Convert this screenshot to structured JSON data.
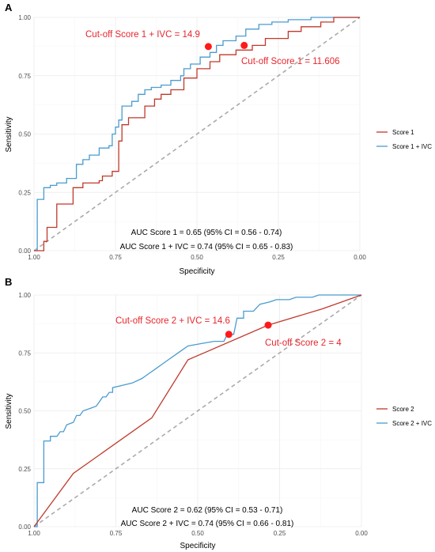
{
  "colors": {
    "red": "#c0392b",
    "blue": "#4a9ccf",
    "cutoff": "#ff1a1a",
    "cutoff_text": "#e8252c",
    "diagonal": "#aaaaaa"
  },
  "chart_data": [
    {
      "type": "line",
      "panel_label": "A",
      "title": "",
      "xlabel": "Specificity",
      "ylabel": "Sensitivity",
      "xlim": [
        1.0,
        0.0
      ],
      "ylim": [
        0.0,
        1.0
      ],
      "x_reversed": true,
      "xticks": [
        "1.00",
        "0.75",
        "0.50",
        "0.25",
        "0.00"
      ],
      "yticks": [
        "0.00",
        "0.25",
        "0.50",
        "0.75",
        "1.00"
      ],
      "grid": true,
      "legend_position": "right",
      "series": [
        {
          "name": "Score 1",
          "color_key": "red",
          "points": [
            [
              1.0,
              0.0
            ],
            [
              0.97,
              0.0
            ],
            [
              0.97,
              0.04
            ],
            [
              0.96,
              0.04
            ],
            [
              0.96,
              0.1
            ],
            [
              0.93,
              0.1
            ],
            [
              0.93,
              0.2
            ],
            [
              0.88,
              0.2
            ],
            [
              0.88,
              0.27
            ],
            [
              0.85,
              0.27
            ],
            [
              0.85,
              0.29
            ],
            [
              0.8,
              0.29
            ],
            [
              0.8,
              0.3
            ],
            [
              0.79,
              0.3
            ],
            [
              0.79,
              0.32
            ],
            [
              0.76,
              0.32
            ],
            [
              0.76,
              0.34
            ],
            [
              0.74,
              0.34
            ],
            [
              0.74,
              0.47
            ],
            [
              0.73,
              0.47
            ],
            [
              0.73,
              0.54
            ],
            [
              0.71,
              0.54
            ],
            [
              0.71,
              0.57
            ],
            [
              0.66,
              0.57
            ],
            [
              0.66,
              0.62
            ],
            [
              0.63,
              0.62
            ],
            [
              0.63,
              0.65
            ],
            [
              0.61,
              0.65
            ],
            [
              0.61,
              0.67
            ],
            [
              0.58,
              0.67
            ],
            [
              0.58,
              0.69
            ],
            [
              0.54,
              0.69
            ],
            [
              0.54,
              0.74
            ],
            [
              0.5,
              0.74
            ],
            [
              0.5,
              0.78
            ],
            [
              0.46,
              0.78
            ],
            [
              0.46,
              0.81
            ],
            [
              0.43,
              0.81
            ],
            [
              0.43,
              0.84
            ],
            [
              0.38,
              0.84
            ],
            [
              0.38,
              0.86
            ],
            [
              0.33,
              0.86
            ],
            [
              0.33,
              0.88
            ],
            [
              0.29,
              0.88
            ],
            [
              0.29,
              0.91
            ],
            [
              0.22,
              0.91
            ],
            [
              0.22,
              0.94
            ],
            [
              0.18,
              0.94
            ],
            [
              0.18,
              0.96
            ],
            [
              0.12,
              0.96
            ],
            [
              0.12,
              0.98
            ],
            [
              0.08,
              0.98
            ],
            [
              0.08,
              1.0
            ],
            [
              0.0,
              1.0
            ]
          ]
        },
        {
          "name": "Score 1 + IVC",
          "color_key": "blue",
          "points": [
            [
              1.0,
              0.0
            ],
            [
              0.99,
              0.0
            ],
            [
              0.99,
              0.22
            ],
            [
              0.97,
              0.22
            ],
            [
              0.97,
              0.27
            ],
            [
              0.95,
              0.27
            ],
            [
              0.95,
              0.28
            ],
            [
              0.93,
              0.28
            ],
            [
              0.93,
              0.29
            ],
            [
              0.9,
              0.29
            ],
            [
              0.9,
              0.31
            ],
            [
              0.87,
              0.31
            ],
            [
              0.87,
              0.37
            ],
            [
              0.85,
              0.37
            ],
            [
              0.85,
              0.39
            ],
            [
              0.83,
              0.39
            ],
            [
              0.83,
              0.41
            ],
            [
              0.8,
              0.41
            ],
            [
              0.8,
              0.44
            ],
            [
              0.77,
              0.44
            ],
            [
              0.77,
              0.45
            ],
            [
              0.76,
              0.45
            ],
            [
              0.76,
              0.5
            ],
            [
              0.75,
              0.5
            ],
            [
              0.75,
              0.53
            ],
            [
              0.74,
              0.53
            ],
            [
              0.74,
              0.56
            ],
            [
              0.73,
              0.56
            ],
            [
              0.73,
              0.62
            ],
            [
              0.7,
              0.62
            ],
            [
              0.7,
              0.64
            ],
            [
              0.68,
              0.64
            ],
            [
              0.68,
              0.67
            ],
            [
              0.66,
              0.67
            ],
            [
              0.66,
              0.69
            ],
            [
              0.64,
              0.69
            ],
            [
              0.64,
              0.7
            ],
            [
              0.61,
              0.7
            ],
            [
              0.61,
              0.71
            ],
            [
              0.58,
              0.71
            ],
            [
              0.58,
              0.73
            ],
            [
              0.55,
              0.73
            ],
            [
              0.55,
              0.75
            ],
            [
              0.54,
              0.75
            ],
            [
              0.54,
              0.78
            ],
            [
              0.52,
              0.78
            ],
            [
              0.52,
              0.8
            ],
            [
              0.49,
              0.8
            ],
            [
              0.49,
              0.83
            ],
            [
              0.46,
              0.83
            ],
            [
              0.46,
              0.85
            ],
            [
              0.44,
              0.85
            ],
            [
              0.44,
              0.88
            ],
            [
              0.42,
              0.88
            ],
            [
              0.42,
              0.9
            ],
            [
              0.38,
              0.9
            ],
            [
              0.38,
              0.92
            ],
            [
              0.35,
              0.92
            ],
            [
              0.35,
              0.95
            ],
            [
              0.31,
              0.95
            ],
            [
              0.31,
              0.97
            ],
            [
              0.27,
              0.97
            ],
            [
              0.27,
              0.98
            ],
            [
              0.22,
              0.98
            ],
            [
              0.22,
              0.99
            ],
            [
              0.15,
              0.99
            ],
            [
              0.15,
              1.0
            ],
            [
              0.0,
              1.0
            ]
          ]
        },
        {
          "name": "",
          "color_key": "diagonal",
          "dashed": true,
          "points": [
            [
              1.0,
              0.0
            ],
            [
              0.0,
              1.0
            ]
          ]
        }
      ],
      "cutoffs": [
        {
          "label": "Cut-off Score 1 + IVC = 14.9",
          "x": 0.465,
          "y": 0.875
        },
        {
          "label": "Cut-off Score 1 = 11.606",
          "x": 0.355,
          "y": 0.88
        }
      ],
      "annotations": [
        "AUC Score 1 = 0.65 (95% CI = 0.56 - 0.74)",
        "AUC Score 1 + IVC = 0.74 (95% CI = 0.65 - 0.83)"
      ]
    },
    {
      "type": "line",
      "panel_label": "B",
      "title": "",
      "xlabel": "Specificity",
      "ylabel": "Sensitivity",
      "xlim": [
        1.0,
        0.0
      ],
      "ylim": [
        0.0,
        1.0
      ],
      "x_reversed": true,
      "xticks": [
        "1.00",
        "0.75",
        "0.50",
        "0.25",
        "0.00"
      ],
      "yticks": [
        "0.00",
        "0.25",
        "0.50",
        "0.75",
        "1.00"
      ],
      "grid": true,
      "legend_position": "right",
      "series": [
        {
          "name": "Score 2",
          "color_key": "red",
          "points": [
            [
              1.0,
              0.0
            ],
            [
              0.88,
              0.23
            ],
            [
              0.64,
              0.47
            ],
            [
              0.53,
              0.72
            ],
            [
              0.285,
              0.87
            ],
            [
              0.12,
              0.94
            ],
            [
              0.0,
              1.0
            ]
          ]
        },
        {
          "name": "Score 2 + IVC",
          "color_key": "blue",
          "points": [
            [
              1.0,
              0.0
            ],
            [
              0.99,
              0.0
            ],
            [
              0.99,
              0.19
            ],
            [
              0.97,
              0.19
            ],
            [
              0.97,
              0.37
            ],
            [
              0.95,
              0.37
            ],
            [
              0.95,
              0.39
            ],
            [
              0.93,
              0.39
            ],
            [
              0.92,
              0.41
            ],
            [
              0.91,
              0.41
            ],
            [
              0.9,
              0.44
            ],
            [
              0.88,
              0.45
            ],
            [
              0.87,
              0.48
            ],
            [
              0.86,
              0.48
            ],
            [
              0.85,
              0.5
            ],
            [
              0.83,
              0.51
            ],
            [
              0.81,
              0.52
            ],
            [
              0.8,
              0.54
            ],
            [
              0.79,
              0.56
            ],
            [
              0.78,
              0.56
            ],
            [
              0.77,
              0.58
            ],
            [
              0.76,
              0.58
            ],
            [
              0.76,
              0.6
            ],
            [
              0.73,
              0.61
            ],
            [
              0.7,
              0.62
            ],
            [
              0.67,
              0.64
            ],
            [
              0.65,
              0.66
            ],
            [
              0.63,
              0.68
            ],
            [
              0.61,
              0.7
            ],
            [
              0.59,
              0.72
            ],
            [
              0.57,
              0.74
            ],
            [
              0.55,
              0.76
            ],
            [
              0.53,
              0.78
            ],
            [
              0.49,
              0.79
            ],
            [
              0.45,
              0.8
            ],
            [
              0.42,
              0.8
            ],
            [
              0.41,
              0.83
            ],
            [
              0.39,
              0.83
            ],
            [
              0.38,
              0.9
            ],
            [
              0.36,
              0.9
            ],
            [
              0.36,
              0.93
            ],
            [
              0.33,
              0.93
            ],
            [
              0.31,
              0.96
            ],
            [
              0.28,
              0.97
            ],
            [
              0.26,
              0.98
            ],
            [
              0.22,
              0.98
            ],
            [
              0.2,
              0.99
            ],
            [
              0.15,
              0.99
            ],
            [
              0.13,
              1.0
            ],
            [
              0.0,
              1.0
            ]
          ]
        },
        {
          "name": "",
          "color_key": "diagonal",
          "dashed": true,
          "points": [
            [
              1.0,
              0.0
            ],
            [
              0.0,
              1.0
            ]
          ]
        }
      ],
      "cutoffs": [
        {
          "label": "Cut-off Score 2 + IVC = 14.6",
          "x": 0.405,
          "y": 0.83
        },
        {
          "label": "Cut-off Score 2 = 4",
          "x": 0.285,
          "y": 0.87
        }
      ],
      "annotations": [
        "AUC Score 2 = 0.62 (95% CI = 0.53 - 0.71)",
        "AUC Score 2 + IVC = 0.74 (95% CI = 0.66 - 0.81)"
      ]
    }
  ]
}
